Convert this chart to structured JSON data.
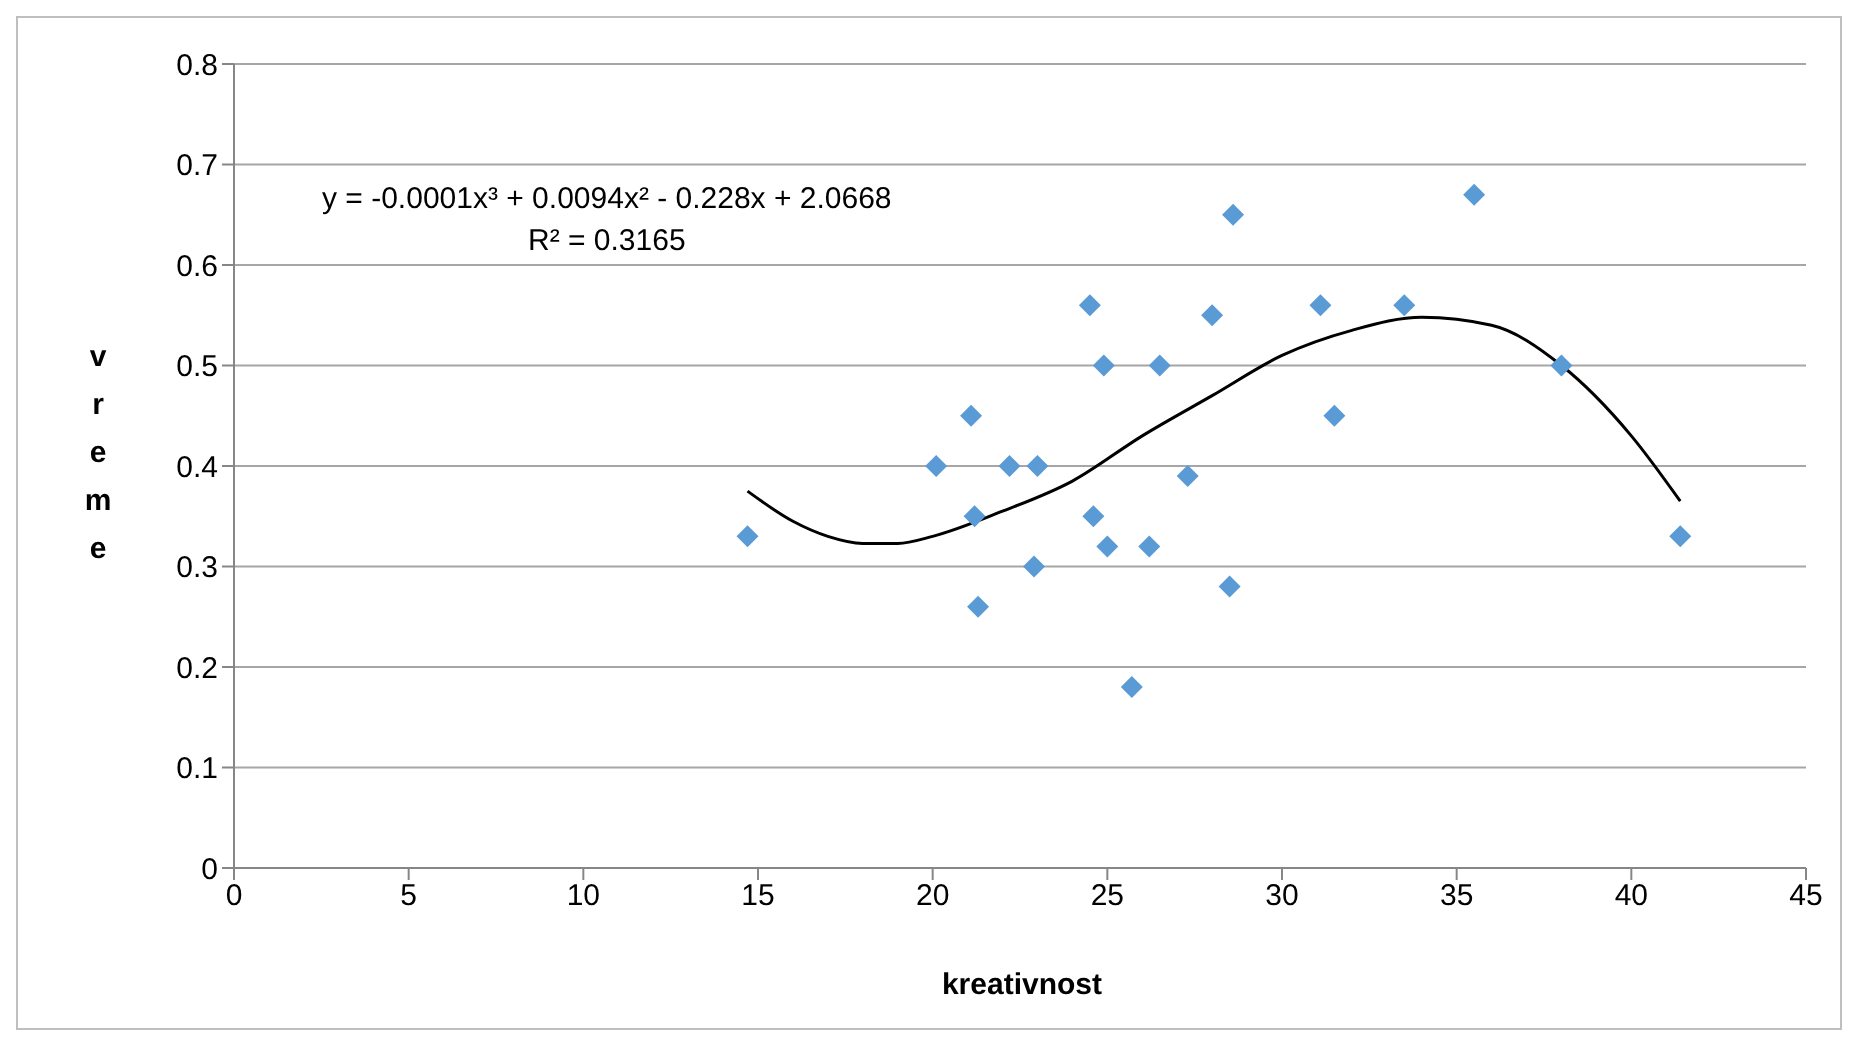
{
  "chart_data": {
    "type": "scatter",
    "xlabel": "kreativnost",
    "ylabel": "vreme",
    "xlim": [
      0,
      45
    ],
    "xticks": [
      0,
      5,
      10,
      15,
      20,
      25,
      30,
      35,
      40,
      45
    ],
    "ylim": [
      0,
      0.8
    ],
    "yticks": [
      0,
      0.1,
      0.2,
      0.3,
      0.4,
      0.5,
      0.6,
      0.7,
      0.8
    ],
    "grid": "y",
    "annotations": [
      "y = -0.0001x³ + 0.0094x² - 0.228x + 2.0668",
      "R² = 0.3165"
    ],
    "series": [
      {
        "color": "#5b9bd5",
        "marker": "diamond",
        "x": [
          14.7,
          20.1,
          21.1,
          21.2,
          21.3,
          22.2,
          23.0,
          22.9,
          24.5,
          24.6,
          24.9,
          25.0,
          25.7,
          26.2,
          26.5,
          27.3,
          28.0,
          28.5,
          28.6,
          31.1,
          31.5,
          33.5,
          35.5,
          38.0,
          41.4
        ],
        "values": [
          0.33,
          0.4,
          0.45,
          0.35,
          0.26,
          0.4,
          0.4,
          0.3,
          0.56,
          0.35,
          0.5,
          0.32,
          0.18,
          0.32,
          0.5,
          0.39,
          0.55,
          0.28,
          0.65,
          0.56,
          0.45,
          0.56,
          0.67,
          0.5,
          0.33
        ]
      },
      {
        "type": "line",
        "color": "#000000",
        "marker": "none",
        "x": [
          14.7,
          16,
          17,
          18,
          19,
          20,
          22,
          24,
          26,
          28,
          30,
          32,
          34,
          36,
          38,
          40,
          41.4
        ],
        "values": [
          0.375,
          0.345,
          0.33,
          0.323,
          0.323,
          0.33,
          0.355,
          0.385,
          0.43,
          0.47,
          0.51,
          0.535,
          0.548,
          0.54,
          0.5,
          0.43,
          0.365
        ]
      }
    ]
  }
}
